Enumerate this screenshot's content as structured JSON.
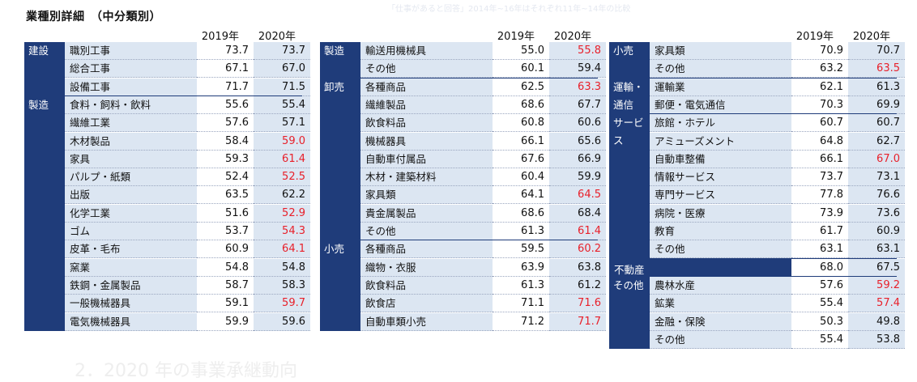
{
  "title": "業種別詳細　（中分類別）",
  "faint_top": "「仕事があると回答」2014年~16年はそれぞれ11年~14年の比較",
  "faint_bottom": "2．2020 年の事業承継動向",
  "year_headers": [
    "2019年",
    "2020年"
  ],
  "colors": {
    "navy": "#1f3c7a",
    "light_blue": "#dce6f2",
    "red": "#e8202a"
  },
  "panel1": {
    "groups": [
      {
        "label": "建設",
        "rows": [
          {
            "sub": "職別工事",
            "v2019": "73.7",
            "v2020": "73.7",
            "red": false
          },
          {
            "sub": "総合工事",
            "v2019": "67.1",
            "v2020": "67.0",
            "red": false
          },
          {
            "sub": "設備工事",
            "v2019": "71.7",
            "v2020": "71.5",
            "red": false
          }
        ]
      },
      {
        "label": "製造",
        "rows": [
          {
            "sub": "食料・飼料・飲料",
            "v2019": "55.6",
            "v2020": "55.4",
            "red": false
          },
          {
            "sub": "繊維工業",
            "v2019": "57.6",
            "v2020": "57.1",
            "red": false
          },
          {
            "sub": "木材製品",
            "v2019": "58.4",
            "v2020": "59.0",
            "red": true
          },
          {
            "sub": "家具",
            "v2019": "59.3",
            "v2020": "61.4",
            "red": true
          },
          {
            "sub": "パルプ・紙類",
            "v2019": "52.4",
            "v2020": "52.5",
            "red": true
          },
          {
            "sub": "出版",
            "v2019": "63.5",
            "v2020": "62.2",
            "red": false
          },
          {
            "sub": "化学工業",
            "v2019": "51.6",
            "v2020": "52.9",
            "red": true
          },
          {
            "sub": "ゴム",
            "v2019": "53.7",
            "v2020": "54.3",
            "red": true
          },
          {
            "sub": "皮革・毛布",
            "v2019": "60.9",
            "v2020": "64.1",
            "red": true
          },
          {
            "sub": "窯業",
            "v2019": "54.8",
            "v2020": "54.8",
            "red": false
          },
          {
            "sub": "鉄鋼・金属製品",
            "v2019": "58.7",
            "v2020": "58.3",
            "red": false
          },
          {
            "sub": "一般機械器具",
            "v2019": "59.1",
            "v2020": "59.7",
            "red": true
          },
          {
            "sub": "電気機械器具",
            "v2019": "59.9",
            "v2020": "59.6",
            "red": false
          }
        ]
      }
    ]
  },
  "panel2": {
    "groups": [
      {
        "label": "製造",
        "rows": [
          {
            "sub": "輸送用機械具",
            "v2019": "55.0",
            "v2020": "55.8",
            "red": true
          },
          {
            "sub": "その他",
            "v2019": "60.1",
            "v2020": "59.4",
            "red": false
          }
        ]
      },
      {
        "label": "卸売",
        "rows": [
          {
            "sub": "各種商品",
            "v2019": "62.5",
            "v2020": "63.3",
            "red": true
          },
          {
            "sub": "繊維製品",
            "v2019": "68.6",
            "v2020": "67.7",
            "red": false
          },
          {
            "sub": "飲食料品",
            "v2019": "60.8",
            "v2020": "60.6",
            "red": false
          },
          {
            "sub": "機械器具",
            "v2019": "66.1",
            "v2020": "65.6",
            "red": false
          },
          {
            "sub": "自動車付属品",
            "v2019": "67.6",
            "v2020": "66.9",
            "red": false
          },
          {
            "sub": "木材・建築材料",
            "v2019": "60.4",
            "v2020": "59.9",
            "red": false
          },
          {
            "sub": "家具類",
            "v2019": "64.1",
            "v2020": "64.5",
            "red": true
          },
          {
            "sub": "貴金属製品",
            "v2019": "68.6",
            "v2020": "68.4",
            "red": false
          },
          {
            "sub": "その他",
            "v2019": "61.3",
            "v2020": "61.4",
            "red": true
          }
        ]
      },
      {
        "label": "小売",
        "rows": [
          {
            "sub": "各種商品",
            "v2019": "59.5",
            "v2020": "60.2",
            "red": true
          },
          {
            "sub": "織物・衣服",
            "v2019": "63.9",
            "v2020": "63.8",
            "red": false
          },
          {
            "sub": "飲食料品",
            "v2019": "61.3",
            "v2020": "61.2",
            "red": false
          },
          {
            "sub": "飲食店",
            "v2019": "71.1",
            "v2020": "71.6",
            "red": true
          },
          {
            "sub": "自動車類小売",
            "v2019": "71.2",
            "v2020": "71.7",
            "red": true
          }
        ]
      }
    ]
  },
  "panel3": {
    "groups": [
      {
        "label": "小売",
        "rows": [
          {
            "sub": "家具類",
            "v2019": "70.9",
            "v2020": "70.7",
            "red": false
          },
          {
            "sub": "その他",
            "v2019": "63.2",
            "v2020": "63.5",
            "red": true
          }
        ]
      },
      {
        "label": "運輸・\n通信",
        "rows": [
          {
            "sub": "運輸業",
            "v2019": "62.1",
            "v2020": "61.3",
            "red": false
          },
          {
            "sub": "郵便・電気通信",
            "v2019": "70.3",
            "v2020": "69.9",
            "red": false
          }
        ]
      },
      {
        "label": "サービス",
        "rows": [
          {
            "sub": "旅館・ホテル",
            "v2019": "60.7",
            "v2020": "60.7",
            "red": false
          },
          {
            "sub": "アミューズメント",
            "v2019": "64.8",
            "v2020": "62.7",
            "red": false
          },
          {
            "sub": "自動車整備",
            "v2019": "66.1",
            "v2020": "67.0",
            "red": true
          },
          {
            "sub": "情報サービス",
            "v2019": "73.7",
            "v2020": "73.1",
            "red": false
          },
          {
            "sub": "専門サービス",
            "v2019": "77.8",
            "v2020": "76.6",
            "red": false
          },
          {
            "sub": "病院・医療",
            "v2019": "73.9",
            "v2020": "73.6",
            "red": false
          },
          {
            "sub": "教育",
            "v2019": "61.7",
            "v2020": "60.9",
            "red": false
          },
          {
            "sub": "その他",
            "v2019": "63.1",
            "v2020": "63.1",
            "red": false
          }
        ]
      },
      {
        "label": "不動産",
        "full": true,
        "rows": [
          {
            "sub": "",
            "v2019": "68.0",
            "v2020": "67.5",
            "red": false
          }
        ]
      },
      {
        "label": "その他",
        "rows": [
          {
            "sub": "農林水産",
            "v2019": "57.6",
            "v2020": "59.2",
            "red": true
          },
          {
            "sub": "鉱業",
            "v2019": "55.4",
            "v2020": "57.4",
            "red": true
          },
          {
            "sub": "金融・保険",
            "v2019": "50.3",
            "v2020": "49.8",
            "red": false
          },
          {
            "sub": "その他",
            "v2019": "55.4",
            "v2020": "53.8",
            "red": false
          }
        ]
      }
    ]
  }
}
